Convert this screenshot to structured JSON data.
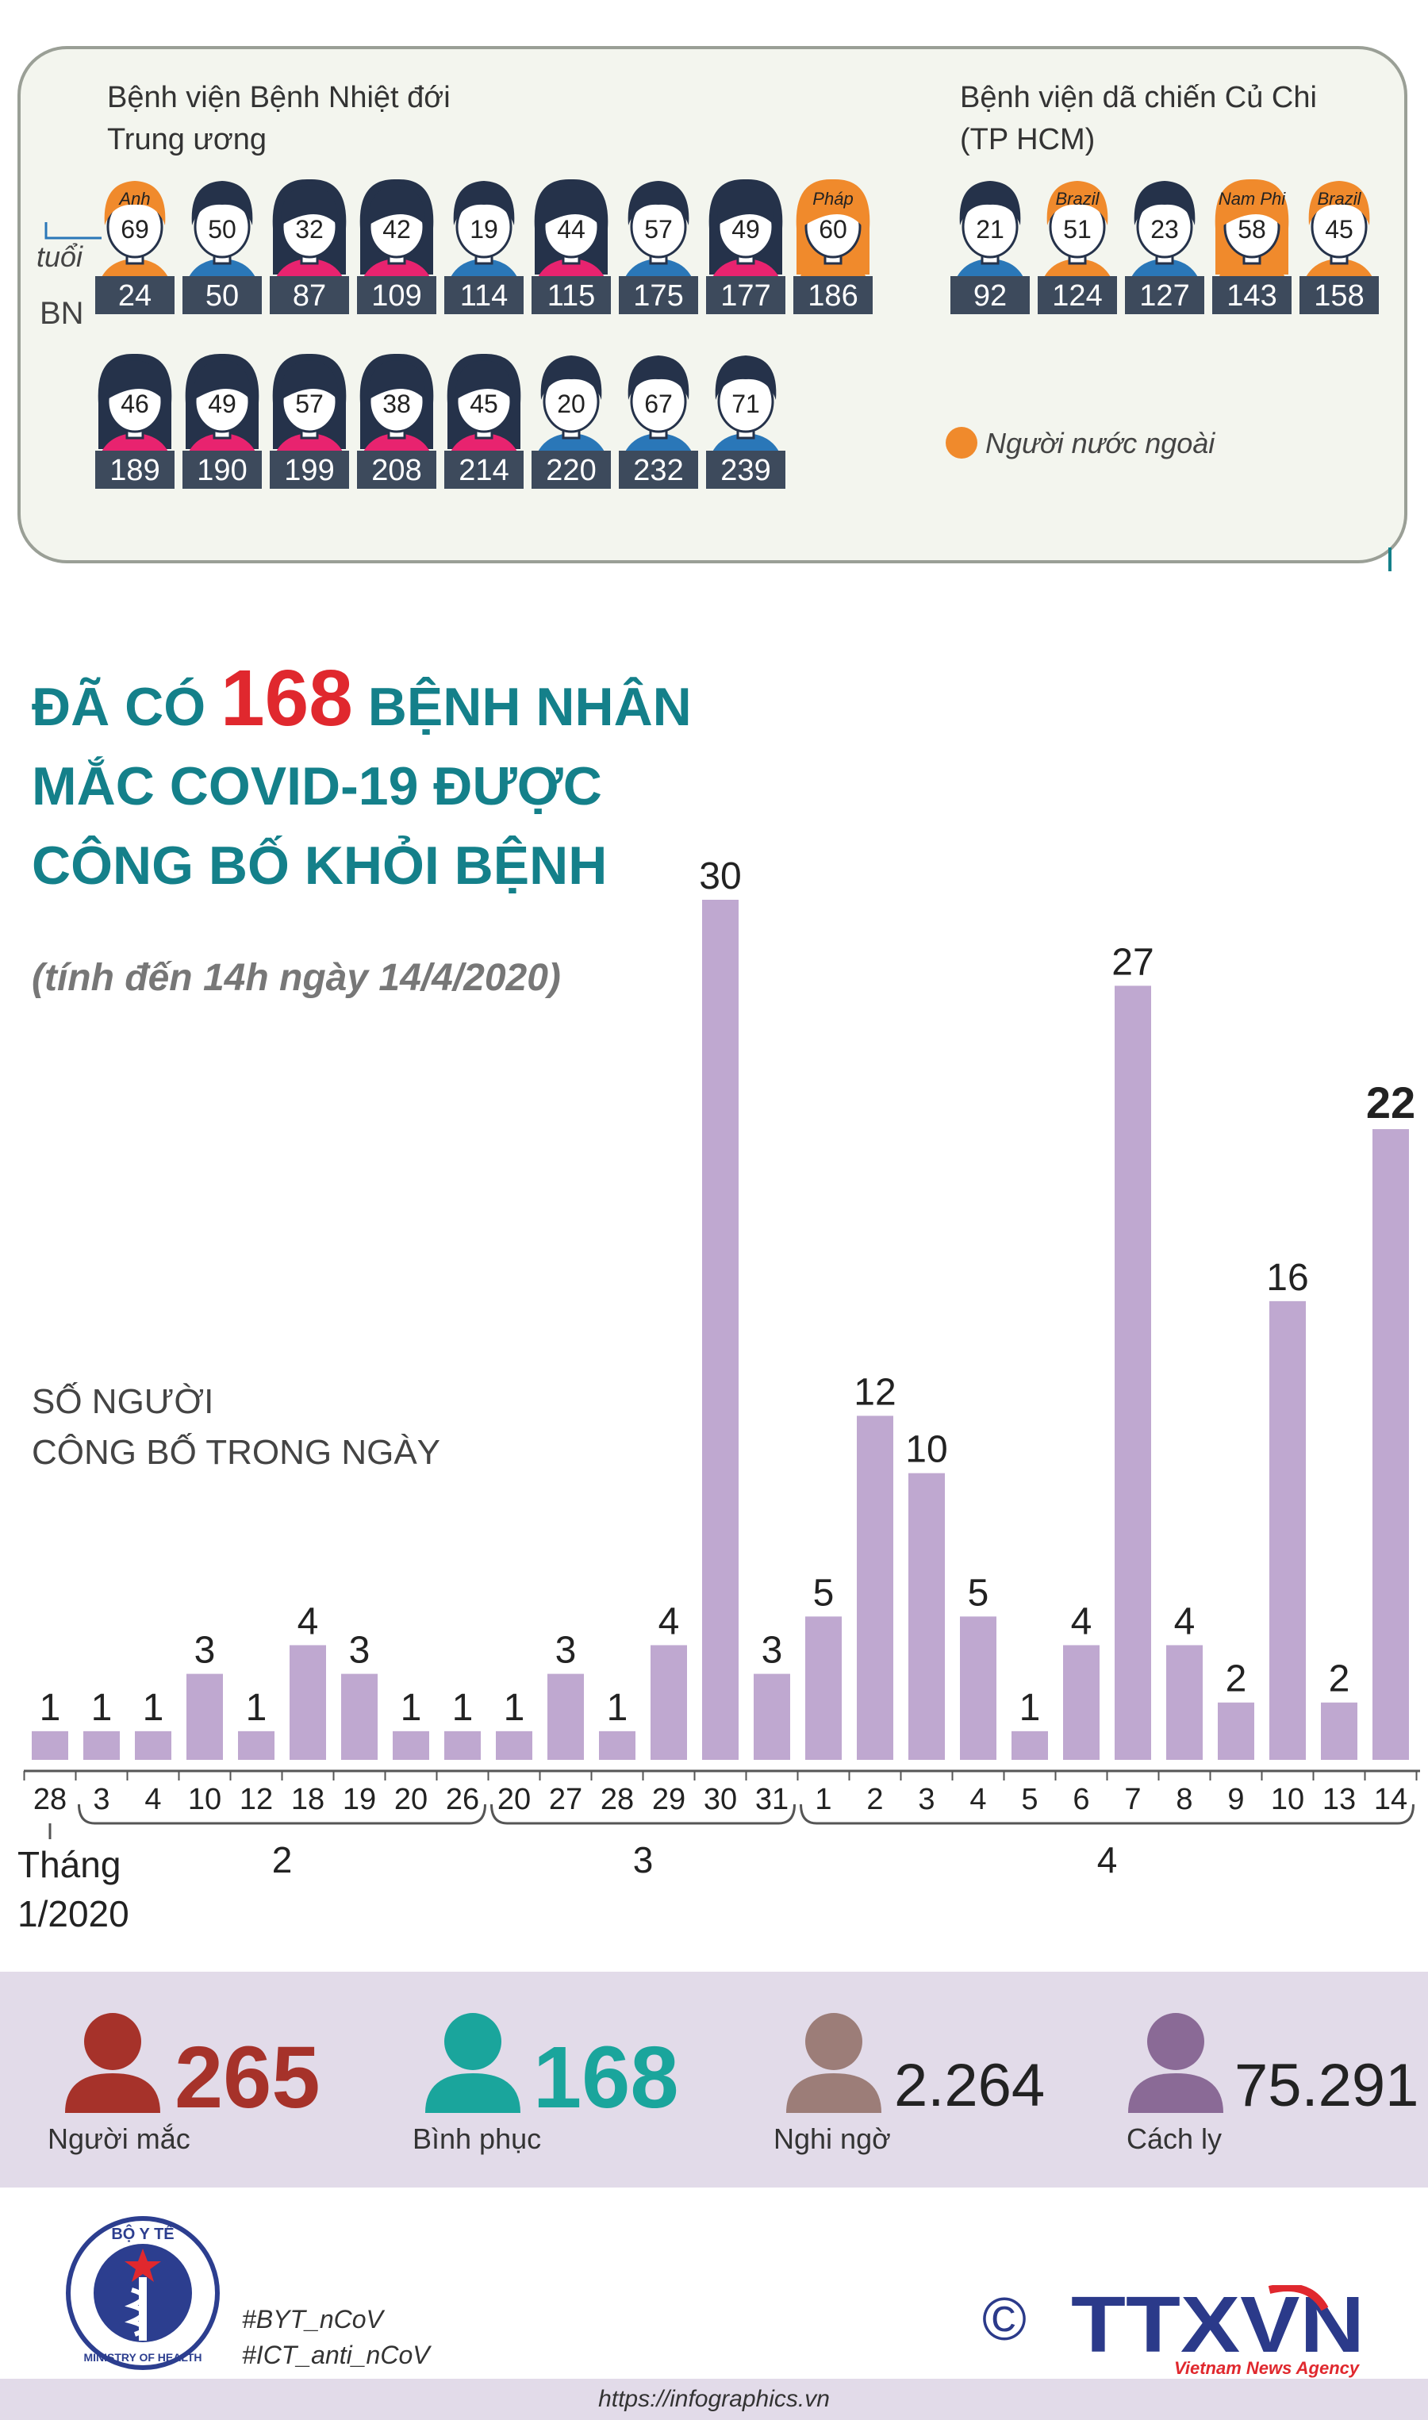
{
  "patients": {
    "hospital1": {
      "name_line1": "Bệnh viện Bệnh Nhiệt đới",
      "name_line2": "Trung ương"
    },
    "hospital2": {
      "name_line1": "Bệnh viện dã chiến Củ Chi",
      "name_line2": "(TP HCM)"
    },
    "age_label": "tuổi",
    "bn_label": "BN",
    "legend_foreign": "Người nước ngoài",
    "row1": [
      {
        "age": "69",
        "bn": "24",
        "gender": "m",
        "foreign": true,
        "country": "Anh"
      },
      {
        "age": "50",
        "bn": "50",
        "gender": "m",
        "foreign": false,
        "country": ""
      },
      {
        "age": "32",
        "bn": "87",
        "gender": "f",
        "foreign": false,
        "country": ""
      },
      {
        "age": "42",
        "bn": "109",
        "gender": "f",
        "foreign": false,
        "country": ""
      },
      {
        "age": "19",
        "bn": "114",
        "gender": "m",
        "foreign": false,
        "country": ""
      },
      {
        "age": "44",
        "bn": "115",
        "gender": "f",
        "foreign": false,
        "country": ""
      },
      {
        "age": "57",
        "bn": "175",
        "gender": "m",
        "foreign": false,
        "country": ""
      },
      {
        "age": "49",
        "bn": "177",
        "gender": "f",
        "foreign": false,
        "country": ""
      },
      {
        "age": "60",
        "bn": "186",
        "gender": "f",
        "foreign": true,
        "country": "Pháp"
      }
    ],
    "row2": [
      {
        "age": "46",
        "bn": "189",
        "gender": "f",
        "foreign": false,
        "country": ""
      },
      {
        "age": "49",
        "bn": "190",
        "gender": "f",
        "foreign": false,
        "country": ""
      },
      {
        "age": "57",
        "bn": "199",
        "gender": "f",
        "foreign": false,
        "country": ""
      },
      {
        "age": "38",
        "bn": "208",
        "gender": "f",
        "foreign": false,
        "country": ""
      },
      {
        "age": "45",
        "bn": "214",
        "gender": "f",
        "foreign": false,
        "country": ""
      },
      {
        "age": "20",
        "bn": "220",
        "gender": "m",
        "foreign": false,
        "country": ""
      },
      {
        "age": "67",
        "bn": "232",
        "gender": "m",
        "foreign": false,
        "country": ""
      },
      {
        "age": "71",
        "bn": "239",
        "gender": "m",
        "foreign": false,
        "country": ""
      }
    ],
    "row3": [
      {
        "age": "21",
        "bn": "92",
        "gender": "m",
        "foreign": false,
        "country": ""
      },
      {
        "age": "51",
        "bn": "124",
        "gender": "m",
        "foreign": true,
        "country": "Brazil"
      },
      {
        "age": "23",
        "bn": "127",
        "gender": "m",
        "foreign": false,
        "country": ""
      },
      {
        "age": "58",
        "bn": "143",
        "gender": "f",
        "foreign": true,
        "country": "Nam Phi"
      },
      {
        "age": "45",
        "bn": "158",
        "gender": "m",
        "foreign": true,
        "country": "Brazil"
      }
    ]
  },
  "colors": {
    "bar": "#bfa8d0",
    "teal": "#14808a",
    "red": "#e0282e",
    "male": "#2a77b8",
    "female": "#e8236f",
    "foreign": "#f08a2c",
    "hair": "#25324a",
    "label_bg": "#3d4a5c"
  },
  "title": {
    "part1": "ĐÃ CÓ",
    "highlight": "168",
    "part2": "BỆNH NHÂN",
    "line2": "MẮC COVID-19 ĐƯỢC",
    "line3": "CÔNG BỐ KHỎI BỆNH"
  },
  "subtitle": "(tính đến 14h ngày 14/4/2020)",
  "axis_title": {
    "line1": "SỐ NGƯỜI",
    "line2": "CÔNG BỐ TRONG NGÀY"
  },
  "chart_data": {
    "type": "bar",
    "categories": [
      "28",
      "3",
      "4",
      "10",
      "12",
      "18",
      "19",
      "20",
      "26",
      "20",
      "27",
      "28",
      "29",
      "30",
      "31",
      "1",
      "2",
      "3",
      "4",
      "5",
      "6",
      "7",
      "8",
      "9",
      "10",
      "13",
      "14"
    ],
    "values": [
      1,
      1,
      1,
      3,
      1,
      4,
      3,
      1,
      1,
      1,
      3,
      1,
      4,
      30,
      3,
      5,
      12,
      10,
      5,
      1,
      4,
      27,
      4,
      2,
      16,
      2,
      22
    ],
    "month_groups": [
      {
        "label": "Tháng\n1/2020",
        "count": 1
      },
      {
        "label": "2",
        "count": 8
      },
      {
        "label": "3",
        "count": 6
      },
      {
        "label": "4",
        "count": 12
      }
    ],
    "month_label_1": "Tháng",
    "month_label_1b": "1/2020",
    "highlight_last": true,
    "ylim": [
      0,
      30
    ]
  },
  "stats": [
    {
      "value": "265",
      "label": "Người mắc",
      "color": "#a6322a",
      "big": true
    },
    {
      "value": "168",
      "label": "Bình phục",
      "color": "#1aa59c",
      "big": true
    },
    {
      "value": "2.264",
      "label": "Nghi ngờ",
      "color": "#9c7d78",
      "big": false
    },
    {
      "value": "75.291",
      "label": "Cách ly",
      "color": "#8a6a96",
      "big": false
    }
  ],
  "footer": {
    "tag1": "#BYT_nCoV",
    "tag2": "#ICT_anti_nCoV",
    "url": "https://infographics.vn",
    "logo_text": "TTXVN",
    "logo_sub": "Vietnam News Agency",
    "copyright": "©",
    "ministry_top": "BỘ Y TẾ",
    "ministry_bottom": "MINISTRY OF HEALTH"
  }
}
